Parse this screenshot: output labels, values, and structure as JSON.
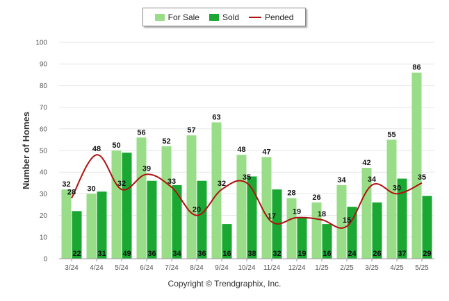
{
  "chart_data": {
    "type": "bar",
    "ylabel": "Number of Homes",
    "ylim": [
      0,
      100
    ],
    "yticks": [
      0,
      10,
      20,
      30,
      40,
      50,
      60,
      70,
      80,
      90,
      100
    ],
    "categories": [
      "3/24",
      "4/24",
      "5/24",
      "6/24",
      "7/24",
      "8/24",
      "9/24",
      "10/24",
      "11/24",
      "12/24",
      "1/25",
      "2/25",
      "3/25",
      "4/25",
      "5/25"
    ],
    "series": [
      {
        "name": "For Sale",
        "type": "bar",
        "color": "#99dd88",
        "values": [
          32,
          30,
          50,
          56,
          52,
          57,
          63,
          48,
          47,
          28,
          26,
          34,
          42,
          55,
          86
        ]
      },
      {
        "name": "Sold",
        "type": "bar",
        "color": "#1aa832",
        "values": [
          22,
          31,
          49,
          36,
          34,
          36,
          16,
          38,
          32,
          19,
          16,
          24,
          26,
          37,
          29
        ]
      },
      {
        "name": "Pended",
        "type": "line",
        "color": "#b01010",
        "values": [
          28,
          48,
          32,
          39,
          33,
          20,
          32,
          35,
          17,
          19,
          18,
          15,
          34,
          30,
          35
        ]
      }
    ],
    "legend_position": "top-center",
    "grid": true
  },
  "footer": {
    "copyright": "Copyright © Trendgraphix, Inc."
  }
}
